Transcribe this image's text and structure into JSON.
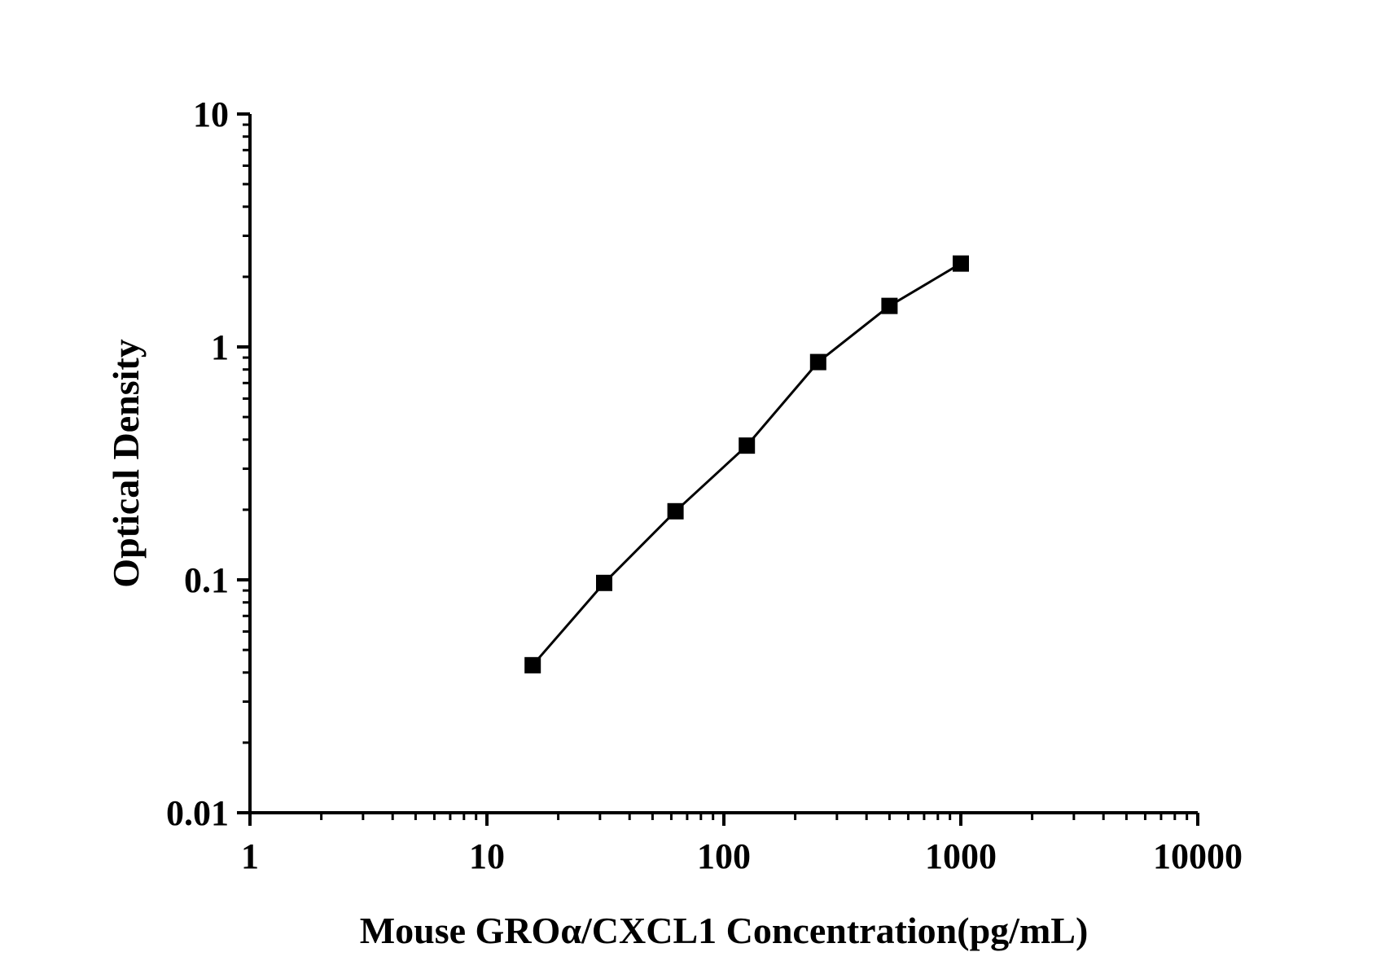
{
  "chart_data": {
    "type": "line",
    "title": "",
    "xlabel": "Mouse GROα/CXCL1 Concentration(pg/mL)",
    "ylabel": "Optical Density",
    "x_scale": "log",
    "y_scale": "log",
    "xlim": [
      1,
      10000
    ],
    "ylim": [
      0.01,
      10
    ],
    "x_ticks": [
      "1",
      "10",
      "100",
      "1000",
      "10000"
    ],
    "y_ticks": [
      "0.01",
      "0.1",
      "1",
      "10"
    ],
    "grid": false,
    "marker": "square",
    "line_color": "#000000",
    "series": [
      {
        "x": [
          15.6,
          31.25,
          62.5,
          125,
          250,
          500,
          1000
        ],
        "y": [
          0.043,
          0.097,
          0.197,
          0.377,
          0.861,
          1.5,
          2.28
        ]
      }
    ]
  }
}
